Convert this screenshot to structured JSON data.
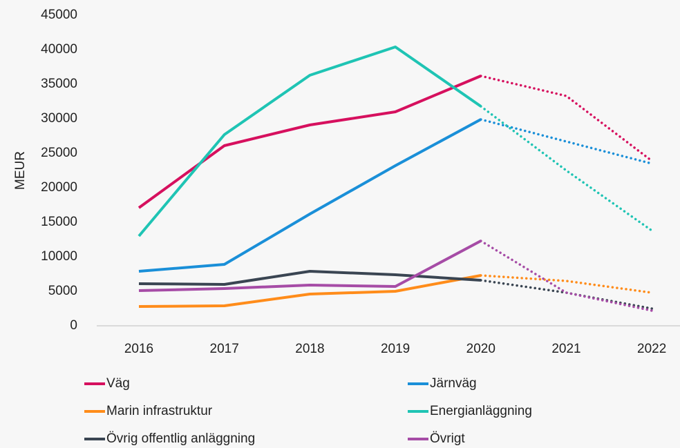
{
  "chart_data": {
    "type": "line",
    "ylabel": "MEUR",
    "categories": [
      "2016",
      "2017",
      "2018",
      "2019",
      "2020",
      "2021",
      "2022"
    ],
    "forecast_start": "2020",
    "ylim": [
      0,
      45000
    ],
    "yticks": [
      0,
      5000,
      10000,
      15000,
      20000,
      25000,
      30000,
      35000,
      40000,
      45000
    ],
    "grid": false,
    "series": [
      {
        "name": "Väg",
        "color": "#d6105e",
        "values": [
          17100,
          26100,
          29100,
          31000,
          36200,
          33300,
          23900
        ]
      },
      {
        "name": "Järnväg",
        "color": "#1a8fd8",
        "values": [
          7900,
          8900,
          16200,
          23200,
          29900,
          26700,
          23500
        ]
      },
      {
        "name": "Marin infrastruktur",
        "color": "#ff8c1a",
        "values": [
          2800,
          2900,
          4600,
          5000,
          7300,
          6500,
          4800
        ]
      },
      {
        "name": "Energianläggning",
        "color": "#1fc4b4",
        "values": [
          13000,
          27700,
          36300,
          40400,
          31800,
          22500,
          13800
        ]
      },
      {
        "name": "Övrig offentlig anläggning",
        "color": "#3a4552",
        "values": [
          6100,
          6000,
          7900,
          7400,
          6600,
          4800,
          2500
        ]
      },
      {
        "name": "Övrigt",
        "color": "#a64ca6",
        "values": [
          5100,
          5400,
          5900,
          5700,
          12300,
          4800,
          2200
        ]
      }
    ]
  }
}
